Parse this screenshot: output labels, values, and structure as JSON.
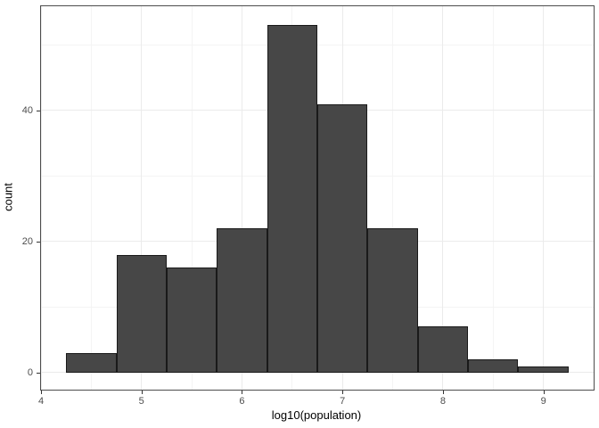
{
  "chart_data": {
    "type": "bar",
    "subtype": "histogram",
    "title": "",
    "xlabel": "log10(population)",
    "ylabel": "count",
    "bins": {
      "start": 4.25,
      "width": 0.5
    },
    "bin_edges": [
      4.25,
      4.75,
      5.25,
      5.75,
      6.25,
      6.75,
      7.25,
      7.75,
      8.25,
      8.75,
      9.25
    ],
    "counts": [
      3,
      18,
      16,
      22,
      53,
      41,
      22,
      7,
      2,
      1
    ],
    "x_ticks": [
      4,
      5,
      6,
      7,
      8,
      9
    ],
    "y_ticks": [
      0,
      20,
      40
    ],
    "x_minor_ticks": [
      4.5,
      5.5,
      6.5,
      7.5,
      8.5,
      9.5
    ],
    "y_minor_ticks": [
      10,
      30,
      50
    ],
    "xlim": [
      4,
      9.5
    ],
    "ylim": [
      -2.6,
      55.9
    ],
    "grid": "major-and-minor",
    "legend_position": "none",
    "colors": {
      "bar_fill": "#474747",
      "bar_stroke": "#1a1a1a",
      "grid_major": "#ebebeb",
      "grid_minor": "#f4f4f4",
      "panel_border": "#4d4d4d",
      "tick_mark": "#333333",
      "tick_label": "#4d4d4d",
      "axis_title": "#000000",
      "background": "#ffffff"
    }
  }
}
